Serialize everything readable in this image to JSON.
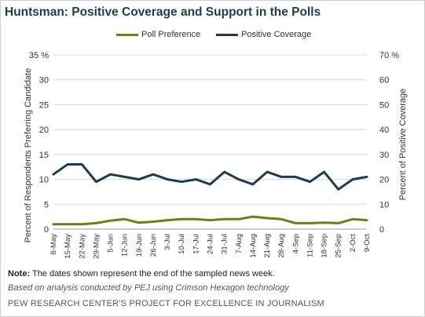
{
  "title": "Huntsman: Positive Coverage and Support in the Polls",
  "note_label": "Note:",
  "note_text": "The dates shown represent the end of the sampled news week.",
  "credit": "Based on analysis conducted by PEJ using Crimson Hexagon technology",
  "source": "PEW RESEARCH CENTER'S PROJECT FOR EXCELLENCE IN JOURNALISM",
  "chart_data": {
    "type": "line",
    "categories": [
      "8-May",
      "15-May",
      "22-May",
      "29-May",
      "5-Jun",
      "12-Jun",
      "19-Jun",
      "26-Jun",
      "3-Jul",
      "10-Jul",
      "17-Jul",
      "24-Jul",
      "31-Jul",
      "7-Aug",
      "14-Aug",
      "21-Aug",
      "28-Aug",
      "4-Sep",
      "11-Sep",
      "18-Sep",
      "25-Sep",
      "2-Oct",
      "9-Oct"
    ],
    "series": [
      {
        "name": "Poll Preference",
        "axis": "left",
        "color": "#6b7f1a",
        "values": [
          1.0,
          1.0,
          1.0,
          1.2,
          1.7,
          2.0,
          1.3,
          1.5,
          1.8,
          2.0,
          2.0,
          1.8,
          2.0,
          2.0,
          2.5,
          2.2,
          2.0,
          1.2,
          1.2,
          1.3,
          1.2,
          2.0,
          1.8
        ]
      },
      {
        "name": "Positive Coverage",
        "axis": "right",
        "color": "#1b3a56",
        "values": [
          22,
          26,
          26,
          19,
          22,
          21,
          20,
          22,
          20,
          19,
          20,
          18,
          23,
          20,
          18,
          23,
          21,
          21,
          19,
          23,
          16,
          20,
          21
        ]
      }
    ],
    "y_left": {
      "label": "Percent of Respondents Preferring Candidate",
      "min": 0,
      "max": 35,
      "ticks": [
        "0",
        "5",
        "10",
        "15",
        "20",
        "25",
        "30",
        "35 %"
      ]
    },
    "y_right": {
      "label": "Percent of Positive Coverage",
      "min": 0,
      "max": 70,
      "ticks": [
        "0",
        "10",
        "20",
        "30",
        "40",
        "50",
        "60",
        "70 %"
      ]
    },
    "legend_position": "top",
    "grid": "horizontal"
  }
}
